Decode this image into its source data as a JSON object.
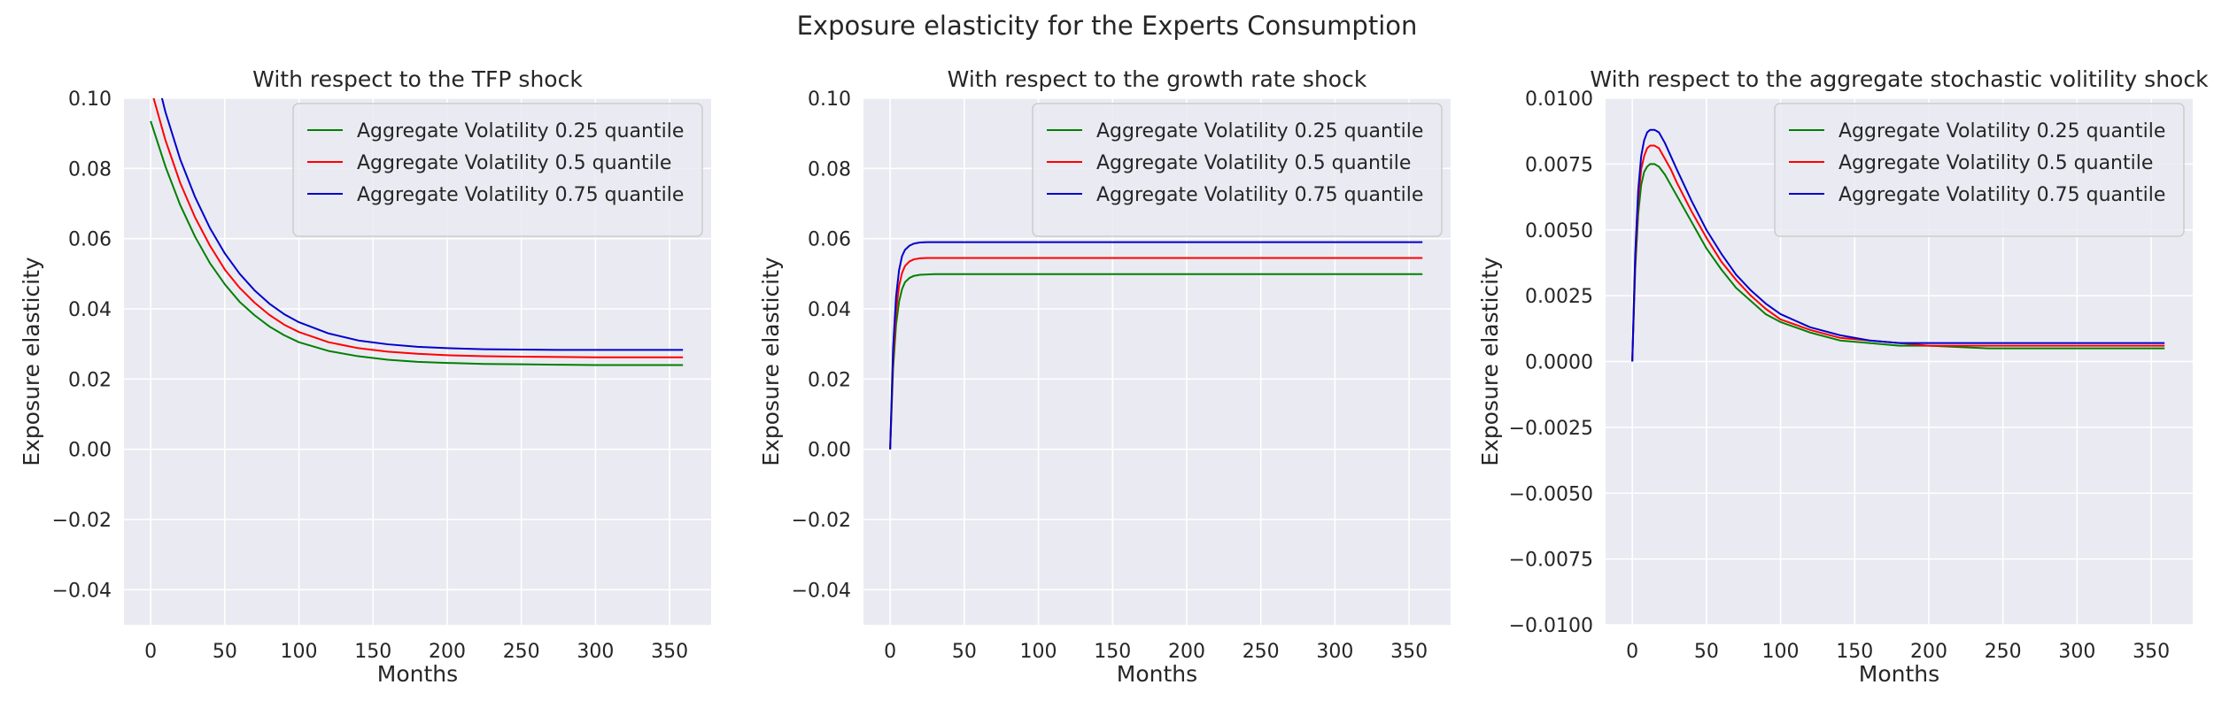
{
  "figure": {
    "title": "Exposure elasticity for the Experts Consumption"
  },
  "colors": {
    "panel_bg": "#eaeaf2",
    "grid": "#ffffff",
    "legend_bg": "#eaeaf2",
    "legend_border": "#cccccc"
  },
  "chart_data": [
    {
      "type": "line",
      "title": "With respect to the TFP shock",
      "xlabel": "Months",
      "ylabel": "Exposure elasticity",
      "xlim": [
        -18,
        378
      ],
      "ylim": [
        -0.05,
        0.1
      ],
      "xticks": [
        0,
        50,
        100,
        150,
        200,
        250,
        300,
        350
      ],
      "xtick_labels": [
        "0",
        "50",
        "100",
        "150",
        "200",
        "250",
        "300",
        "350"
      ],
      "yticks": [
        -0.04,
        -0.02,
        0.0,
        0.02,
        0.04,
        0.06,
        0.08,
        0.1
      ],
      "ytick_labels": [
        "−0.04",
        "−0.02",
        "0.00",
        "0.02",
        "0.04",
        "0.06",
        "0.08",
        "0.10"
      ],
      "legend_position": "top-right",
      "grid": true,
      "series": [
        {
          "name": "Aggregate Volatility 0.25 quantile",
          "color": "#008000",
          "x": [
            0,
            10,
            20,
            30,
            40,
            50,
            60,
            70,
            80,
            90,
            100,
            120,
            140,
            160,
            180,
            200,
            225,
            250,
            275,
            300,
            330,
            359
          ],
          "y": [
            0.0935,
            0.0805,
            0.0695,
            0.0605,
            0.053,
            0.047,
            0.042,
            0.0382,
            0.035,
            0.0325,
            0.0305,
            0.028,
            0.0265,
            0.0255,
            0.0249,
            0.0246,
            0.0243,
            0.0242,
            0.0241,
            0.024,
            0.024,
            0.024
          ]
        },
        {
          "name": "Aggregate Volatility 0.5 quantile",
          "color": "#ff0000",
          "x": [
            0,
            10,
            20,
            30,
            40,
            50,
            60,
            70,
            80,
            90,
            100,
            120,
            140,
            160,
            180,
            200,
            225,
            250,
            275,
            300,
            330,
            359
          ],
          "y": [
            0.103,
            0.088,
            0.0758,
            0.066,
            0.058,
            0.0512,
            0.046,
            0.0418,
            0.0383,
            0.0355,
            0.0334,
            0.0305,
            0.0288,
            0.0278,
            0.0272,
            0.0268,
            0.0265,
            0.0264,
            0.0263,
            0.0262,
            0.0262,
            0.0262
          ]
        },
        {
          "name": "Aggregate Volatility 0.75 quantile",
          "color": "#0000cc",
          "x": [
            0,
            10,
            20,
            30,
            40,
            50,
            60,
            70,
            80,
            90,
            100,
            120,
            140,
            160,
            180,
            200,
            225,
            250,
            275,
            300,
            330,
            359
          ],
          "y": [
            0.113,
            0.096,
            0.0825,
            0.0718,
            0.063,
            0.0558,
            0.05,
            0.0453,
            0.0415,
            0.0385,
            0.0362,
            0.033,
            0.031,
            0.0299,
            0.0292,
            0.0288,
            0.0285,
            0.0284,
            0.0283,
            0.0283,
            0.0283,
            0.0283
          ]
        }
      ]
    },
    {
      "type": "line",
      "title": "With respect to the growth rate shock",
      "xlabel": "Months",
      "ylabel": "Exposure elasticity",
      "xlim": [
        -18,
        378
      ],
      "ylim": [
        -0.05,
        0.1
      ],
      "xticks": [
        0,
        50,
        100,
        150,
        200,
        250,
        300,
        350
      ],
      "xtick_labels": [
        "0",
        "50",
        "100",
        "150",
        "200",
        "250",
        "300",
        "350"
      ],
      "yticks": [
        -0.04,
        -0.02,
        0.0,
        0.02,
        0.04,
        0.06,
        0.08,
        0.1
      ],
      "ytick_labels": [
        "−0.04",
        "−0.02",
        "0.00",
        "0.02",
        "0.04",
        "0.06",
        "0.08",
        "0.10"
      ],
      "legend_position": "top-right",
      "grid": true,
      "series": [
        {
          "name": "Aggregate Volatility 0.25 quantile",
          "color": "#008000",
          "x": [
            0,
            2,
            4,
            6,
            8,
            10,
            13,
            16,
            20,
            25,
            30,
            40,
            60,
            100,
            200,
            359
          ],
          "y": [
            0.0,
            0.023,
            0.0355,
            0.042,
            0.0456,
            0.0476,
            0.0488,
            0.0494,
            0.0497,
            0.0498,
            0.0499,
            0.0499,
            0.0499,
            0.0499,
            0.0499,
            0.0499
          ]
        },
        {
          "name": "Aggregate Volatility 0.5 quantile",
          "color": "#ff0000",
          "x": [
            0,
            2,
            4,
            6,
            8,
            10,
            13,
            16,
            20,
            25,
            30,
            40,
            60,
            100,
            200,
            359
          ],
          "y": [
            0.0,
            0.026,
            0.0395,
            0.0465,
            0.0502,
            0.0522,
            0.0535,
            0.0541,
            0.0544,
            0.0545,
            0.0545,
            0.0545,
            0.0545,
            0.0545,
            0.0545,
            0.0545
          ]
        },
        {
          "name": "Aggregate Volatility 0.75 quantile",
          "color": "#0000cc",
          "x": [
            0,
            2,
            4,
            6,
            8,
            10,
            13,
            16,
            20,
            25,
            30,
            40,
            60,
            100,
            200,
            359
          ],
          "y": [
            0.0,
            0.029,
            0.0435,
            0.051,
            0.055,
            0.0568,
            0.058,
            0.0586,
            0.0589,
            0.059,
            0.059,
            0.059,
            0.059,
            0.059,
            0.059,
            0.059
          ]
        }
      ]
    },
    {
      "type": "line",
      "title": "With respect to the aggregate stochastic volitility shock",
      "xlabel": "Months",
      "ylabel": "Exposure elasticity",
      "xlim": [
        -18,
        378
      ],
      "ylim": [
        -0.01,
        0.01
      ],
      "xticks": [
        0,
        50,
        100,
        150,
        200,
        250,
        300,
        350
      ],
      "xtick_labels": [
        "0",
        "50",
        "100",
        "150",
        "200",
        "250",
        "300",
        "350"
      ],
      "yticks": [
        -0.01,
        -0.0075,
        -0.005,
        -0.0025,
        0.0,
        0.0025,
        0.005,
        0.0075,
        0.01
      ],
      "ytick_labels": [
        "−0.0100",
        "−0.0075",
        "−0.0050",
        "−0.0025",
        "0.0000",
        "0.0025",
        "0.0050",
        "0.0075",
        "0.0100"
      ],
      "legend_position": "top-right",
      "grid": true,
      "series": [
        {
          "name": "Aggregate Volatility 0.25 quantile",
          "color": "#008000",
          "x": [
            0,
            2,
            4,
            6,
            8,
            10,
            12,
            15,
            18,
            22,
            26,
            30,
            40,
            50,
            60,
            70,
            80,
            90,
            100,
            120,
            140,
            160,
            180,
            200,
            240,
            280,
            320,
            359
          ],
          "y": [
            0.0,
            0.0035,
            0.0056,
            0.0067,
            0.0072,
            0.0074,
            0.0075,
            0.0075,
            0.0074,
            0.0071,
            0.0067,
            0.0063,
            0.0053,
            0.0043,
            0.0035,
            0.0028,
            0.0023,
            0.0018,
            0.0015,
            0.0011,
            0.0008,
            0.0007,
            0.0006,
            0.0006,
            0.0005,
            0.0005,
            0.0005,
            0.0005
          ]
        },
        {
          "name": "Aggregate Volatility 0.5 quantile",
          "color": "#ff0000",
          "x": [
            0,
            2,
            4,
            6,
            8,
            10,
            12,
            15,
            18,
            22,
            26,
            30,
            40,
            50,
            60,
            70,
            80,
            90,
            100,
            120,
            140,
            160,
            180,
            200,
            240,
            280,
            320,
            359
          ],
          "y": [
            0.0,
            0.0038,
            0.0061,
            0.0073,
            0.0078,
            0.0081,
            0.0082,
            0.0082,
            0.0081,
            0.0077,
            0.0073,
            0.0068,
            0.0057,
            0.0047,
            0.0038,
            0.0031,
            0.0025,
            0.002,
            0.0016,
            0.0012,
            0.0009,
            0.0008,
            0.0007,
            0.0006,
            0.0006,
            0.0006,
            0.0006,
            0.0006
          ]
        },
        {
          "name": "Aggregate Volatility 0.75 quantile",
          "color": "#0000cc",
          "x": [
            0,
            2,
            4,
            6,
            8,
            10,
            12,
            15,
            18,
            22,
            26,
            30,
            40,
            50,
            60,
            70,
            80,
            90,
            100,
            120,
            140,
            160,
            180,
            200,
            240,
            280,
            320,
            359
          ],
          "y": [
            0.0,
            0.0041,
            0.0065,
            0.0078,
            0.0084,
            0.0087,
            0.0088,
            0.0088,
            0.0087,
            0.0083,
            0.0078,
            0.0073,
            0.0061,
            0.005,
            0.0041,
            0.0033,
            0.0027,
            0.0022,
            0.0018,
            0.0013,
            0.001,
            0.0008,
            0.0007,
            0.0007,
            0.0007,
            0.0007,
            0.0007,
            0.0007
          ]
        }
      ]
    }
  ]
}
